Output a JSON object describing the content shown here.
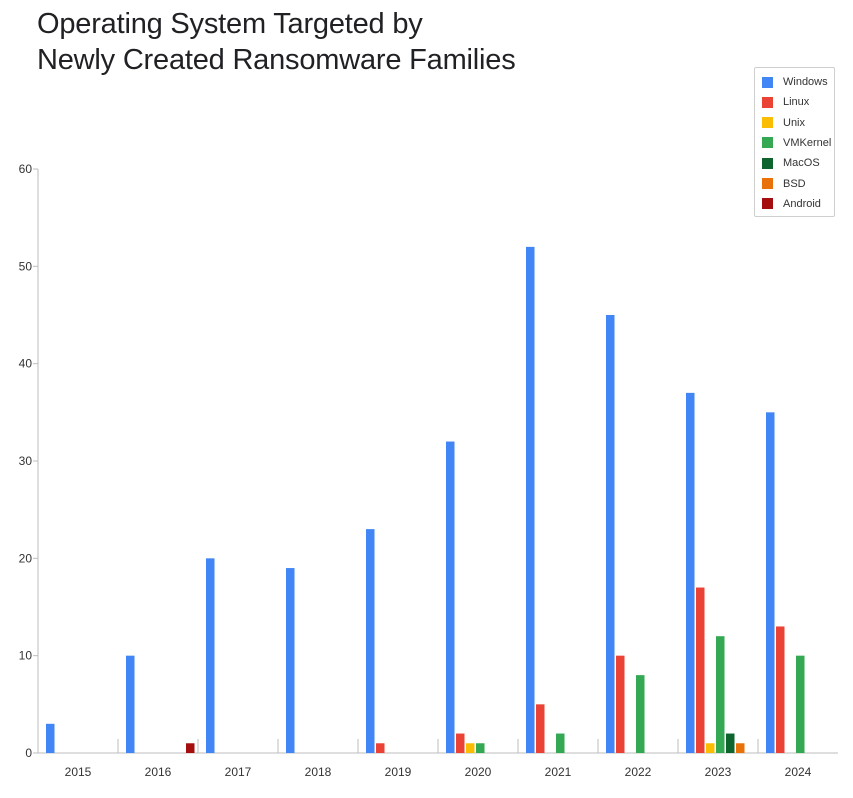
{
  "title_lines": [
    "Operating System Targeted by",
    "Newly Created Ransomware Families"
  ],
  "chart_data": {
    "type": "bar",
    "title": "Operating System Targeted by Newly Created Ransomware Families",
    "xlabel": "",
    "ylabel": "",
    "ylim": [
      0,
      60
    ],
    "yticks": [
      0,
      10,
      20,
      30,
      40,
      50,
      60
    ],
    "grid": false,
    "legend_position": "top-right",
    "categories": [
      "2015",
      "2016",
      "2017",
      "2018",
      "2019",
      "2020",
      "2021",
      "2022",
      "2023",
      "2024"
    ],
    "series": [
      {
        "name": "Windows",
        "color": "#4285f4",
        "values": [
          3,
          10,
          20,
          19,
          23,
          32,
          52,
          45,
          37,
          35
        ]
      },
      {
        "name": "Linux",
        "color": "#ea4335",
        "values": [
          0,
          0,
          0,
          0,
          1,
          2,
          5,
          10,
          17,
          13
        ]
      },
      {
        "name": "Unix",
        "color": "#fbbc04",
        "values": [
          0,
          0,
          0,
          0,
          0,
          1,
          0,
          0,
          1,
          0
        ]
      },
      {
        "name": "VMKernel",
        "color": "#34a853",
        "values": [
          0,
          0,
          0,
          0,
          0,
          1,
          2,
          8,
          12,
          10
        ]
      },
      {
        "name": "MacOS",
        "color": "#0d652d",
        "values": [
          0,
          0,
          0,
          0,
          0,
          0,
          0,
          0,
          2,
          0
        ]
      },
      {
        "name": "BSD",
        "color": "#e8710a",
        "values": [
          0,
          0,
          0,
          0,
          0,
          0,
          0,
          0,
          1,
          0
        ]
      },
      {
        "name": "Android",
        "color": "#a50e0e",
        "values": [
          0,
          1,
          0,
          0,
          0,
          0,
          0,
          0,
          0,
          0
        ]
      }
    ]
  }
}
